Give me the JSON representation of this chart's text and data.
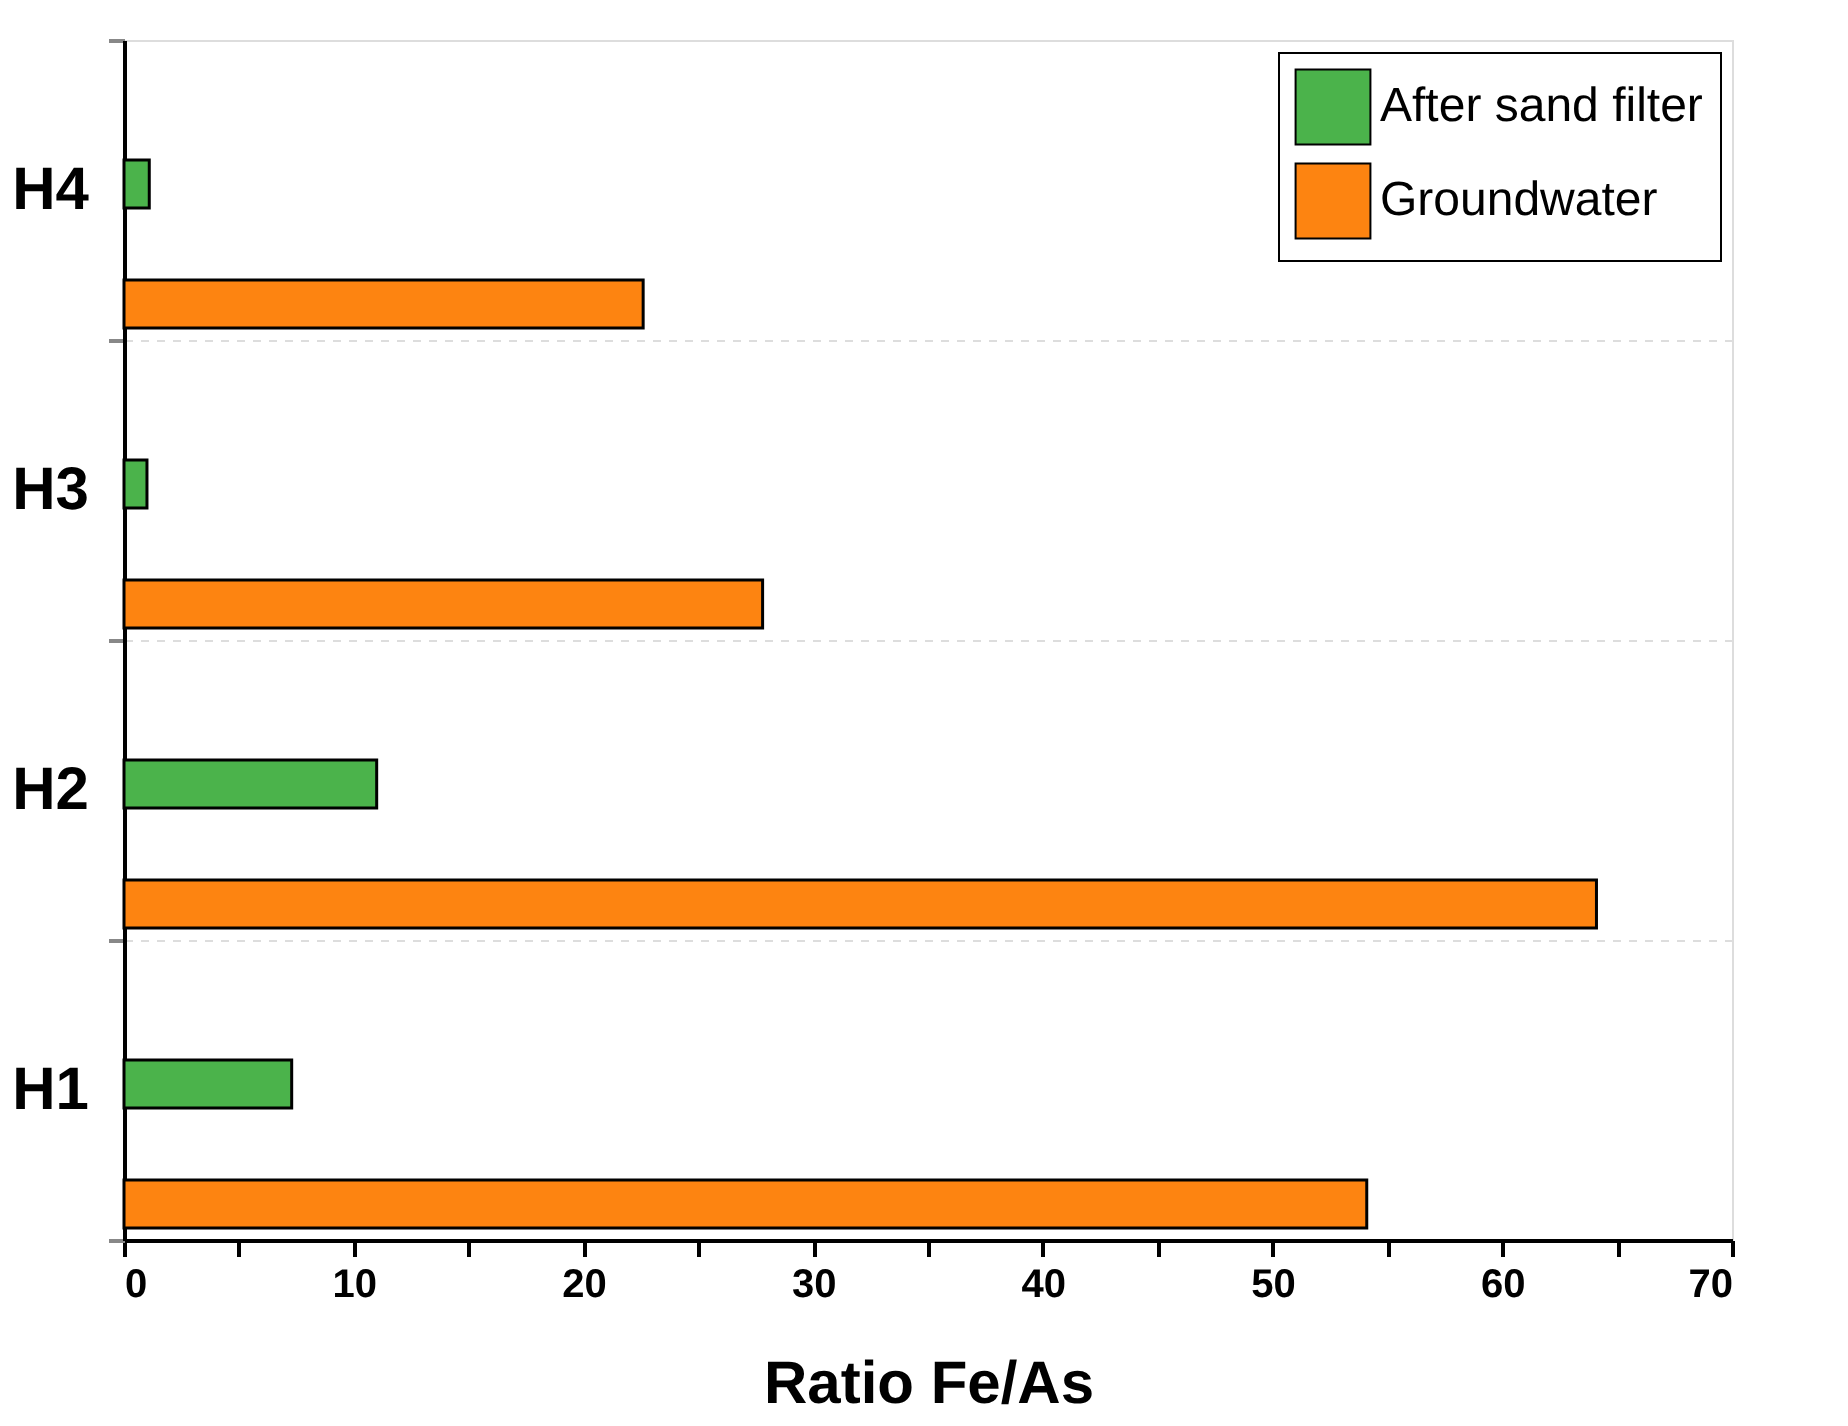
{
  "chart_data": {
    "type": "bar",
    "orientation": "horizontal",
    "xlabel": "Ratio Fe/As",
    "categories": [
      "H4",
      "H3",
      "H2",
      "H1"
    ],
    "series": [
      {
        "name": "After sand filter",
        "color": "#4bb34b",
        "values": [
          1.1,
          1.0,
          11.0,
          7.3
        ]
      },
      {
        "name": "Groundwater",
        "color": "#fd8411",
        "values": [
          22.6,
          27.8,
          64.1,
          54.1
        ]
      }
    ],
    "xlim": [
      0,
      70
    ],
    "xticks": [
      0,
      {
        "value": 5,
        "label": null
      },
      10,
      {
        "value": 15,
        "label": null
      },
      20,
      {
        "value": 25,
        "label": null
      },
      30,
      {
        "value": 35,
        "label": null
      },
      40,
      {
        "value": 45,
        "label": null
      },
      50,
      {
        "value": 55,
        "label": null
      },
      60,
      {
        "value": 65,
        "label": null
      },
      70
    ],
    "grid": "y",
    "legend": "top right"
  }
}
